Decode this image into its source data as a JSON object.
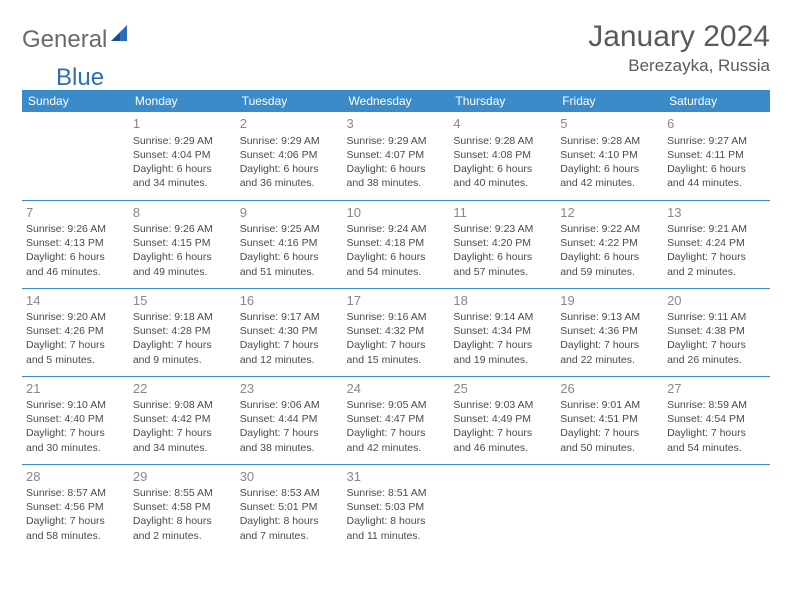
{
  "logo": {
    "part1": "General",
    "part2": "Blue"
  },
  "title": "January 2024",
  "location": "Berezayka, Russia",
  "colors": {
    "header_bg": "#3b8bc9",
    "header_text": "#ffffff",
    "border": "#3b8bc9",
    "daynum": "#888888",
    "body_text": "#4a4a4a",
    "logo_gray": "#6a6a6a",
    "logo_blue": "#2d6fb5"
  },
  "weekdays": [
    "Sunday",
    "Monday",
    "Tuesday",
    "Wednesday",
    "Thursday",
    "Friday",
    "Saturday"
  ],
  "cells": [
    [
      null,
      {
        "n": "1",
        "sr": "Sunrise: 9:29 AM",
        "ss": "Sunset: 4:04 PM",
        "d1": "Daylight: 6 hours",
        "d2": "and 34 minutes."
      },
      {
        "n": "2",
        "sr": "Sunrise: 9:29 AM",
        "ss": "Sunset: 4:06 PM",
        "d1": "Daylight: 6 hours",
        "d2": "and 36 minutes."
      },
      {
        "n": "3",
        "sr": "Sunrise: 9:29 AM",
        "ss": "Sunset: 4:07 PM",
        "d1": "Daylight: 6 hours",
        "d2": "and 38 minutes."
      },
      {
        "n": "4",
        "sr": "Sunrise: 9:28 AM",
        "ss": "Sunset: 4:08 PM",
        "d1": "Daylight: 6 hours",
        "d2": "and 40 minutes."
      },
      {
        "n": "5",
        "sr": "Sunrise: 9:28 AM",
        "ss": "Sunset: 4:10 PM",
        "d1": "Daylight: 6 hours",
        "d2": "and 42 minutes."
      },
      {
        "n": "6",
        "sr": "Sunrise: 9:27 AM",
        "ss": "Sunset: 4:11 PM",
        "d1": "Daylight: 6 hours",
        "d2": "and 44 minutes."
      }
    ],
    [
      {
        "n": "7",
        "sr": "Sunrise: 9:26 AM",
        "ss": "Sunset: 4:13 PM",
        "d1": "Daylight: 6 hours",
        "d2": "and 46 minutes."
      },
      {
        "n": "8",
        "sr": "Sunrise: 9:26 AM",
        "ss": "Sunset: 4:15 PM",
        "d1": "Daylight: 6 hours",
        "d2": "and 49 minutes."
      },
      {
        "n": "9",
        "sr": "Sunrise: 9:25 AM",
        "ss": "Sunset: 4:16 PM",
        "d1": "Daylight: 6 hours",
        "d2": "and 51 minutes."
      },
      {
        "n": "10",
        "sr": "Sunrise: 9:24 AM",
        "ss": "Sunset: 4:18 PM",
        "d1": "Daylight: 6 hours",
        "d2": "and 54 minutes."
      },
      {
        "n": "11",
        "sr": "Sunrise: 9:23 AM",
        "ss": "Sunset: 4:20 PM",
        "d1": "Daylight: 6 hours",
        "d2": "and 57 minutes."
      },
      {
        "n": "12",
        "sr": "Sunrise: 9:22 AM",
        "ss": "Sunset: 4:22 PM",
        "d1": "Daylight: 6 hours",
        "d2": "and 59 minutes."
      },
      {
        "n": "13",
        "sr": "Sunrise: 9:21 AM",
        "ss": "Sunset: 4:24 PM",
        "d1": "Daylight: 7 hours",
        "d2": "and 2 minutes."
      }
    ],
    [
      {
        "n": "14",
        "sr": "Sunrise: 9:20 AM",
        "ss": "Sunset: 4:26 PM",
        "d1": "Daylight: 7 hours",
        "d2": "and 5 minutes."
      },
      {
        "n": "15",
        "sr": "Sunrise: 9:18 AM",
        "ss": "Sunset: 4:28 PM",
        "d1": "Daylight: 7 hours",
        "d2": "and 9 minutes."
      },
      {
        "n": "16",
        "sr": "Sunrise: 9:17 AM",
        "ss": "Sunset: 4:30 PM",
        "d1": "Daylight: 7 hours",
        "d2": "and 12 minutes."
      },
      {
        "n": "17",
        "sr": "Sunrise: 9:16 AM",
        "ss": "Sunset: 4:32 PM",
        "d1": "Daylight: 7 hours",
        "d2": "and 15 minutes."
      },
      {
        "n": "18",
        "sr": "Sunrise: 9:14 AM",
        "ss": "Sunset: 4:34 PM",
        "d1": "Daylight: 7 hours",
        "d2": "and 19 minutes."
      },
      {
        "n": "19",
        "sr": "Sunrise: 9:13 AM",
        "ss": "Sunset: 4:36 PM",
        "d1": "Daylight: 7 hours",
        "d2": "and 22 minutes."
      },
      {
        "n": "20",
        "sr": "Sunrise: 9:11 AM",
        "ss": "Sunset: 4:38 PM",
        "d1": "Daylight: 7 hours",
        "d2": "and 26 minutes."
      }
    ],
    [
      {
        "n": "21",
        "sr": "Sunrise: 9:10 AM",
        "ss": "Sunset: 4:40 PM",
        "d1": "Daylight: 7 hours",
        "d2": "and 30 minutes."
      },
      {
        "n": "22",
        "sr": "Sunrise: 9:08 AM",
        "ss": "Sunset: 4:42 PM",
        "d1": "Daylight: 7 hours",
        "d2": "and 34 minutes."
      },
      {
        "n": "23",
        "sr": "Sunrise: 9:06 AM",
        "ss": "Sunset: 4:44 PM",
        "d1": "Daylight: 7 hours",
        "d2": "and 38 minutes."
      },
      {
        "n": "24",
        "sr": "Sunrise: 9:05 AM",
        "ss": "Sunset: 4:47 PM",
        "d1": "Daylight: 7 hours",
        "d2": "and 42 minutes."
      },
      {
        "n": "25",
        "sr": "Sunrise: 9:03 AM",
        "ss": "Sunset: 4:49 PM",
        "d1": "Daylight: 7 hours",
        "d2": "and 46 minutes."
      },
      {
        "n": "26",
        "sr": "Sunrise: 9:01 AM",
        "ss": "Sunset: 4:51 PM",
        "d1": "Daylight: 7 hours",
        "d2": "and 50 minutes."
      },
      {
        "n": "27",
        "sr": "Sunrise: 8:59 AM",
        "ss": "Sunset: 4:54 PM",
        "d1": "Daylight: 7 hours",
        "d2": "and 54 minutes."
      }
    ],
    [
      {
        "n": "28",
        "sr": "Sunrise: 8:57 AM",
        "ss": "Sunset: 4:56 PM",
        "d1": "Daylight: 7 hours",
        "d2": "and 58 minutes."
      },
      {
        "n": "29",
        "sr": "Sunrise: 8:55 AM",
        "ss": "Sunset: 4:58 PM",
        "d1": "Daylight: 8 hours",
        "d2": "and 2 minutes."
      },
      {
        "n": "30",
        "sr": "Sunrise: 8:53 AM",
        "ss": "Sunset: 5:01 PM",
        "d1": "Daylight: 8 hours",
        "d2": "and 7 minutes."
      },
      {
        "n": "31",
        "sr": "Sunrise: 8:51 AM",
        "ss": "Sunset: 5:03 PM",
        "d1": "Daylight: 8 hours",
        "d2": "and 11 minutes."
      },
      null,
      null,
      null
    ]
  ]
}
